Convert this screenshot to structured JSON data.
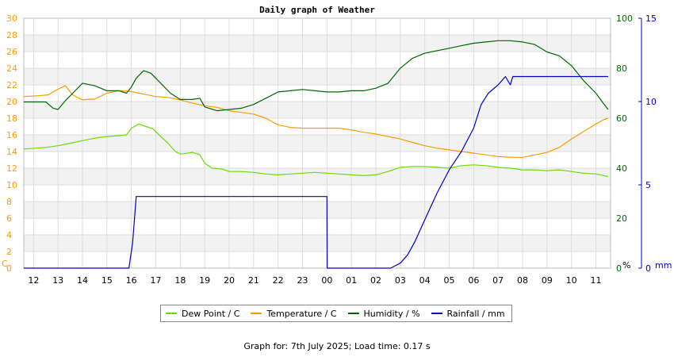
{
  "chart_data": {
    "type": "line",
    "title": "Daily graph of Weather",
    "x_labels": [
      "12",
      "13",
      "14",
      "15",
      "16",
      "17",
      "18",
      "19",
      "20",
      "21",
      "22",
      "23",
      "00",
      "01",
      "02",
      "03",
      "04",
      "05",
      "06",
      "07",
      "08",
      "09",
      "10",
      "11"
    ],
    "axes": {
      "left": {
        "min": 0,
        "max": 30,
        "ticks": [
          0,
          2,
          4,
          6,
          8,
          10,
          12,
          14,
          16,
          18,
          20,
          22,
          24,
          26,
          28,
          30
        ],
        "unit": "C",
        "color": "#ff9900"
      },
      "right1": {
        "min": 0,
        "max": 100,
        "ticks": [
          0,
          20,
          40,
          60,
          80,
          100
        ],
        "unit": "%",
        "color": "#006600"
      },
      "right2": {
        "min": 0,
        "max": 15,
        "ticks": [
          0,
          5,
          10,
          15
        ],
        "unit": "mm",
        "color": "#0000cc"
      }
    },
    "grid": true,
    "legend_position": "bottom",
    "series": [
      {
        "name": "Dew Point / C",
        "axis": "left",
        "color": "#66dd00",
        "points": [
          [
            11.6,
            14.3
          ],
          [
            12.5,
            14.5
          ],
          [
            13,
            14.7
          ],
          [
            13.5,
            15.0
          ],
          [
            14,
            15.3
          ],
          [
            14.5,
            15.6
          ],
          [
            15,
            15.8
          ],
          [
            15.5,
            15.9
          ],
          [
            15.8,
            16.0
          ],
          [
            16,
            16.8
          ],
          [
            16.3,
            17.3
          ],
          [
            16.6,
            17.0
          ],
          [
            16.9,
            16.7
          ],
          [
            17.2,
            15.8
          ],
          [
            17.5,
            15.0
          ],
          [
            17.8,
            14.0
          ],
          [
            18,
            13.7
          ],
          [
            18.5,
            13.9
          ],
          [
            18.8,
            13.6
          ],
          [
            19,
            12.6
          ],
          [
            19.3,
            12.0
          ],
          [
            19.7,
            11.9
          ],
          [
            20,
            11.6
          ],
          [
            20.5,
            11.6
          ],
          [
            21,
            11.5
          ],
          [
            21.5,
            11.3
          ],
          [
            22,
            11.2
          ],
          [
            22.5,
            11.3
          ],
          [
            23,
            11.4
          ],
          [
            23.5,
            11.5
          ],
          [
            0,
            11.4
          ],
          [
            0.5,
            11.3
          ],
          [
            1,
            11.2
          ],
          [
            1.5,
            11.1
          ],
          [
            2,
            11.2
          ],
          [
            2.5,
            11.6
          ],
          [
            3,
            12.1
          ],
          [
            3.5,
            12.2
          ],
          [
            4,
            12.2
          ],
          [
            4.5,
            12.1
          ],
          [
            5,
            12.0
          ],
          [
            5.5,
            12.3
          ],
          [
            6,
            12.4
          ],
          [
            6.5,
            12.3
          ],
          [
            7,
            12.1
          ],
          [
            7.5,
            12.0
          ],
          [
            8,
            11.8
          ],
          [
            8.5,
            11.8
          ],
          [
            9,
            11.7
          ],
          [
            9.5,
            11.8
          ],
          [
            10,
            11.6
          ],
          [
            10.5,
            11.4
          ],
          [
            11,
            11.3
          ],
          [
            11.5,
            11.0
          ]
        ]
      },
      {
        "name": "Temperature / C",
        "axis": "left",
        "color": "#ff9900",
        "points": [
          [
            11.6,
            20.6
          ],
          [
            12.2,
            20.7
          ],
          [
            12.6,
            20.8
          ],
          [
            13,
            21.5
          ],
          [
            13.3,
            21.9
          ],
          [
            13.6,
            20.8
          ],
          [
            14,
            20.2
          ],
          [
            14.5,
            20.3
          ],
          [
            15,
            21.0
          ],
          [
            15.5,
            21.3
          ],
          [
            16,
            21.2
          ],
          [
            16.5,
            20.9
          ],
          [
            17,
            20.6
          ],
          [
            17.5,
            20.5
          ],
          [
            18,
            20.2
          ],
          [
            18.5,
            19.8
          ],
          [
            19,
            19.5
          ],
          [
            19.5,
            19.3
          ],
          [
            20,
            18.9
          ],
          [
            20.5,
            18.7
          ],
          [
            21,
            18.5
          ],
          [
            21.5,
            18.0
          ],
          [
            22,
            17.2
          ],
          [
            22.5,
            16.9
          ],
          [
            23,
            16.8
          ],
          [
            23.5,
            16.8
          ],
          [
            0,
            16.8
          ],
          [
            0.5,
            16.8
          ],
          [
            1,
            16.6
          ],
          [
            1.5,
            16.3
          ],
          [
            2,
            16.1
          ],
          [
            2.5,
            15.8
          ],
          [
            3,
            15.5
          ],
          [
            3.5,
            15.1
          ],
          [
            4,
            14.7
          ],
          [
            4.5,
            14.4
          ],
          [
            5,
            14.2
          ],
          [
            5.5,
            14.0
          ],
          [
            6,
            13.8
          ],
          [
            6.5,
            13.6
          ],
          [
            7,
            13.4
          ],
          [
            7.5,
            13.3
          ],
          [
            8,
            13.3
          ],
          [
            8.5,
            13.6
          ],
          [
            9,
            13.9
          ],
          [
            9.5,
            14.5
          ],
          [
            10,
            15.5
          ],
          [
            10.5,
            16.4
          ],
          [
            11,
            17.3
          ],
          [
            11.3,
            17.8
          ],
          [
            11.5,
            18.0
          ]
        ]
      },
      {
        "name": "Humidity / %",
        "axis": "right1",
        "color": "#006600",
        "points": [
          [
            11.6,
            66.5
          ],
          [
            12,
            66.5
          ],
          [
            12.5,
            66.5
          ],
          [
            12.8,
            64.0
          ],
          [
            13,
            63.5
          ],
          [
            13.3,
            67.0
          ],
          [
            13.6,
            70.0
          ],
          [
            14,
            74.0
          ],
          [
            14.5,
            73.0
          ],
          [
            15,
            71.0
          ],
          [
            15.5,
            71.0
          ],
          [
            15.8,
            70.0
          ],
          [
            16,
            72.5
          ],
          [
            16.2,
            76.0
          ],
          [
            16.5,
            79.0
          ],
          [
            16.8,
            78.0
          ],
          [
            17,
            76.0
          ],
          [
            17.3,
            73.0
          ],
          [
            17.6,
            70.0
          ],
          [
            18,
            67.5
          ],
          [
            18.5,
            67.5
          ],
          [
            18.8,
            68.0
          ],
          [
            19,
            64.5
          ],
          [
            19.5,
            63.0
          ],
          [
            20,
            63.5
          ],
          [
            20.5,
            64.0
          ],
          [
            21,
            65.5
          ],
          [
            21.5,
            68.0
          ],
          [
            22,
            70.5
          ],
          [
            22.5,
            71.0
          ],
          [
            23,
            71.5
          ],
          [
            23.5,
            71.0
          ],
          [
            0,
            70.5
          ],
          [
            0.5,
            70.5
          ],
          [
            1,
            71.0
          ],
          [
            1.5,
            71.0
          ],
          [
            2,
            72.0
          ],
          [
            2.5,
            74.0
          ],
          [
            3,
            80.0
          ],
          [
            3.5,
            84.0
          ],
          [
            4,
            86.0
          ],
          [
            4.5,
            87.0
          ],
          [
            5,
            88.0
          ],
          [
            5.5,
            89.0
          ],
          [
            6,
            90.0
          ],
          [
            6.5,
            90.5
          ],
          [
            7,
            91.0
          ],
          [
            7.5,
            91.0
          ],
          [
            8,
            90.5
          ],
          [
            8.5,
            89.5
          ],
          [
            9,
            86.5
          ],
          [
            9.5,
            85.0
          ],
          [
            10,
            81.0
          ],
          [
            10.5,
            75.0
          ],
          [
            11,
            70.0
          ],
          [
            11.3,
            66.0
          ],
          [
            11.5,
            63.5
          ]
        ]
      },
      {
        "name": "Rainfall / mm",
        "axis": "right2",
        "color": "#0000cc",
        "points": [
          [
            11.6,
            0.0
          ],
          [
            15.9,
            0.0
          ],
          [
            16.05,
            1.5
          ],
          [
            16.2,
            4.3
          ],
          [
            0,
            4.3
          ],
          [
            0.01,
            0.0
          ],
          [
            2.6,
            0.0
          ],
          [
            3.0,
            0.3
          ],
          [
            3.3,
            0.8
          ],
          [
            3.6,
            1.6
          ],
          [
            4,
            2.9
          ],
          [
            4.5,
            4.5
          ],
          [
            5,
            5.9
          ],
          [
            5.5,
            7.0
          ],
          [
            6,
            8.4
          ],
          [
            6.3,
            9.8
          ],
          [
            6.6,
            10.5
          ],
          [
            7,
            11.0
          ],
          [
            7.3,
            11.5
          ],
          [
            7.5,
            11.0
          ],
          [
            7.6,
            11.5
          ],
          [
            11.5,
            11.5
          ]
        ]
      }
    ]
  },
  "footer": {
    "text": "Graph for: 7th July 2025; Load time: 0.17 s"
  }
}
